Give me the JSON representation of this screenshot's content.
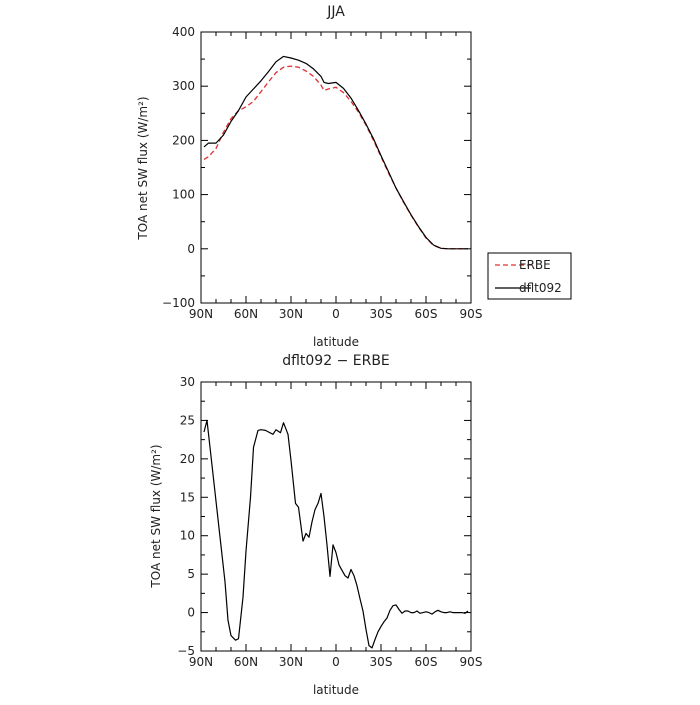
{
  "chart_data": [
    {
      "type": "line",
      "title": "JJA",
      "xlabel": "latitude",
      "ylabel": "TOA net SW flux (W/m²)",
      "xlim": [
        90,
        -90
      ],
      "ylim": [
        -100,
        400
      ],
      "xticks": [
        90,
        60,
        30,
        0,
        -30,
        -60,
        -90
      ],
      "xticklabels": [
        "90N",
        "60N",
        "30N",
        "0",
        "30S",
        "60S",
        "90S"
      ],
      "yticks": [
        -100,
        0,
        100,
        200,
        300,
        400
      ],
      "yticklabels": [
        "−100",
        "0",
        "100",
        "200",
        "300",
        "400"
      ],
      "legend_position": "outside-right-bottom",
      "series": [
        {
          "name": "ERBE",
          "color": "#e03030",
          "dash": "dashed",
          "x": [
            88,
            85,
            80,
            75,
            70,
            65,
            60,
            55,
            50,
            45,
            40,
            35,
            30,
            25,
            20,
            15,
            10,
            8,
            5,
            0,
            -5,
            -10,
            -15,
            -20,
            -25,
            -30,
            -35,
            -40,
            -45,
            -50,
            -55,
            -60,
            -65,
            -70,
            -75,
            -80,
            -85,
            -88
          ],
          "y": [
            165,
            170,
            185,
            215,
            240,
            255,
            262,
            272,
            290,
            308,
            325,
            335,
            337,
            335,
            328,
            318,
            302,
            292,
            295,
            298,
            288,
            272,
            252,
            228,
            200,
            170,
            140,
            112,
            86,
            62,
            40,
            20,
            6,
            1,
            0,
            0,
            0,
            0
          ]
        },
        {
          "name": "dflt092",
          "color": "#000000",
          "dash": "solid",
          "x": [
            88,
            85,
            80,
            75,
            70,
            65,
            60,
            55,
            50,
            45,
            40,
            35,
            30,
            25,
            20,
            15,
            10,
            8,
            5,
            0,
            -5,
            -10,
            -15,
            -20,
            -25,
            -30,
            -35,
            -40,
            -45,
            -50,
            -55,
            -60,
            -65,
            -70,
            -75,
            -80,
            -85,
            -88
          ],
          "y": [
            188,
            195,
            195,
            210,
            235,
            255,
            280,
            295,
            310,
            327,
            345,
            355,
            352,
            348,
            342,
            332,
            318,
            307,
            305,
            307,
            296,
            278,
            255,
            230,
            203,
            172,
            142,
            112,
            87,
            63,
            41,
            21,
            7,
            1,
            0,
            0,
            0,
            0
          ]
        }
      ]
    },
    {
      "type": "line",
      "title": "dflt092 − ERBE",
      "xlabel": "latitude",
      "ylabel": "TOA net SW flux (W/m²)",
      "xlim": [
        90,
        -90
      ],
      "ylim": [
        -5,
        30
      ],
      "xticks": [
        90,
        60,
        30,
        0,
        -30,
        -60,
        -90
      ],
      "xticklabels": [
        "90N",
        "60N",
        "30N",
        "0",
        "30S",
        "60S",
        "90S"
      ],
      "yticks": [
        -5,
        0,
        5,
        10,
        15,
        20,
        25,
        30
      ],
      "yticklabels": [
        "−5",
        "0",
        "5",
        "10",
        "15",
        "20",
        "25",
        "30"
      ],
      "series": [
        {
          "name": "",
          "color": "#000000",
          "dash": "solid",
          "x": [
            88,
            86,
            82,
            78,
            74,
            72,
            70,
            67,
            65,
            62,
            60,
            57,
            55,
            52,
            50,
            47,
            45,
            42,
            40,
            37,
            35,
            32,
            30,
            27,
            25,
            22,
            20,
            18,
            16,
            14,
            12,
            10,
            8,
            6,
            4,
            2,
            0,
            -2,
            -4,
            -6,
            -8,
            -10,
            -12,
            -14,
            -16,
            -18,
            -20,
            -22,
            -24,
            -26,
            -28,
            -30,
            -32,
            -34,
            -36,
            -38,
            -40,
            -42,
            -44,
            -46,
            -48,
            -50,
            -52,
            -54,
            -56,
            -58,
            -60,
            -62,
            -64,
            -66,
            -68,
            -70,
            -72,
            -74,
            -76,
            -78,
            -80,
            -82,
            -84,
            -86,
            -88
          ],
          "y": [
            23.5,
            25,
            18,
            11,
            4,
            -1,
            -3,
            -3.6,
            -3.4,
            2,
            8,
            15,
            21.5,
            23.7,
            23.8,
            23.7,
            23.5,
            23.2,
            23.8,
            23.4,
            24.7,
            23.2,
            19.8,
            14.2,
            13.7,
            9.3,
            10.3,
            9.8,
            11.8,
            13.4,
            14.2,
            15.5,
            12.5,
            8.8,
            4.7,
            8.8,
            7.8,
            6.2,
            5.5,
            4.8,
            4.5,
            5.6,
            4.8,
            3.5,
            1.8,
            0.2,
            -2.2,
            -4.3,
            -4.6,
            -3.5,
            -2.5,
            -1.8,
            -1.2,
            -0.7,
            0.3,
            0.9,
            1.0,
            0.4,
            -0.1,
            0.2,
            0.2,
            0.0,
            0.0,
            0.2,
            -0.1,
            0.0,
            0.1,
            0.0,
            -0.2,
            0.1,
            0.3,
            0.1,
            0.0,
            0.0,
            0.1,
            0.0,
            0.0,
            0.0,
            0.0,
            -0.1,
            0.2
          ]
        }
      ]
    }
  ]
}
